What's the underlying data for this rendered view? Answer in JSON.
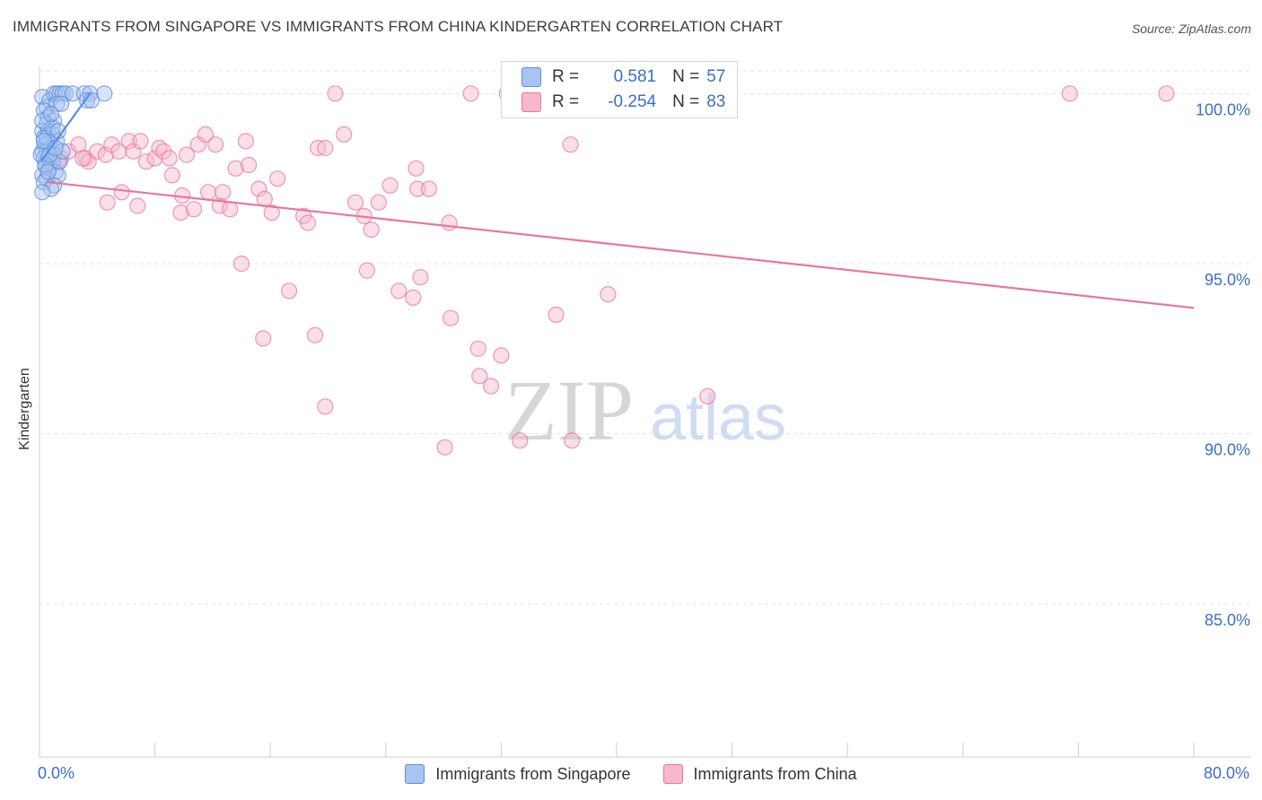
{
  "header": {
    "title": "IMMIGRANTS FROM SINGAPORE VS IMMIGRANTS FROM CHINA KINDERGARTEN CORRELATION CHART",
    "source": "Source: ZipAtlas.com"
  },
  "watermark": {
    "zip": "ZIP",
    "atlas": "atlas"
  },
  "legend": {
    "rows": [
      {
        "r_label": "R =",
        "r_value": "0.581",
        "n_label": "N =",
        "n_value": "57",
        "color": "#a9c4f0"
      },
      {
        "r_label": "R =",
        "r_value": "-0.254",
        "n_label": "N =",
        "n_value": "83",
        "color": "#f7b8cc"
      }
    ]
  },
  "bottom_legend": {
    "series1": "Immigrants from Singapore",
    "series2": "Immigrants from China"
  },
  "chart_data": {
    "type": "scatter",
    "title": "IMMIGRANTS FROM SINGAPORE VS IMMIGRANTS FROM CHINA KINDERGARTEN CORRELATION CHART",
    "xlabel": "",
    "ylabel": "Kindergarten",
    "xlim": [
      0,
      80
    ],
    "ylim": [
      80.5,
      100.8
    ],
    "x_tick_labels": [
      "0.0%",
      "80.0%"
    ],
    "y_ticks": [
      85,
      90,
      95,
      100
    ],
    "y_tick_labels": [
      "85.0%",
      "90.0%",
      "95.0%",
      "100.0%"
    ],
    "grid": true,
    "legend_position": "top-center",
    "series": [
      {
        "name": "Immigrants from Singapore",
        "color": "#5b8fe0",
        "fill": "#a9c4f0",
        "trend": {
          "x": [
            0.1,
            3.5
          ],
          "y": [
            98.0,
            100.0
          ]
        },
        "points": [
          [
            0.2,
            99.9
          ],
          [
            0.5,
            99.6
          ],
          [
            0.7,
            99.8
          ],
          [
            1.0,
            100.0
          ],
          [
            1.2,
            100.0
          ],
          [
            1.4,
            100.0
          ],
          [
            1.6,
            100.0
          ],
          [
            1.8,
            100.0
          ],
          [
            2.3,
            100.0
          ],
          [
            3.1,
            100.0
          ],
          [
            3.5,
            100.0
          ],
          [
            4.5,
            100.0
          ],
          [
            3.3,
            99.8
          ],
          [
            3.6,
            99.8
          ],
          [
            1.2,
            99.7
          ],
          [
            1.5,
            99.7
          ],
          [
            0.3,
            99.5
          ],
          [
            0.6,
            99.3
          ],
          [
            1.0,
            99.2
          ],
          [
            0.5,
            99.1
          ],
          [
            0.2,
            98.9
          ],
          [
            0.6,
            98.9
          ],
          [
            0.9,
            98.8
          ],
          [
            0.3,
            98.7
          ],
          [
            0.7,
            98.6
          ],
          [
            1.2,
            98.6
          ],
          [
            0.4,
            98.5
          ],
          [
            0.8,
            98.4
          ],
          [
            0.2,
            98.3
          ],
          [
            0.5,
            98.3
          ],
          [
            1.0,
            98.2
          ],
          [
            0.3,
            98.1
          ],
          [
            0.6,
            98.1
          ],
          [
            0.9,
            98.0
          ],
          [
            0.4,
            97.9
          ],
          [
            0.7,
            97.8
          ],
          [
            1.1,
            97.7
          ],
          [
            0.2,
            97.6
          ],
          [
            0.5,
            97.5
          ],
          [
            1.3,
            97.6
          ],
          [
            0.3,
            97.4
          ],
          [
            1.0,
            97.3
          ],
          [
            0.8,
            97.2
          ],
          [
            0.2,
            97.1
          ],
          [
            1.4,
            98.0
          ],
          [
            0.5,
            98.7
          ],
          [
            0.9,
            99.0
          ],
          [
            0.1,
            98.2
          ],
          [
            0.4,
            97.9
          ],
          [
            1.6,
            98.3
          ],
          [
            0.7,
            98.2
          ],
          [
            0.3,
            98.6
          ],
          [
            1.1,
            98.4
          ],
          [
            0.6,
            97.7
          ],
          [
            0.2,
            99.2
          ],
          [
            0.8,
            99.4
          ],
          [
            1.3,
            98.9
          ]
        ]
      },
      {
        "name": "Immigrants from China",
        "color": "#e8779b",
        "fill": "#f7b8cc",
        "trend": {
          "x": [
            0.5,
            80
          ],
          "y": [
            97.4,
            93.7
          ]
        },
        "points": [
          [
            1.0,
            98.2
          ],
          [
            1.5,
            98.1
          ],
          [
            2.0,
            98.3
          ],
          [
            2.7,
            98.5
          ],
          [
            3.2,
            98.1
          ],
          [
            3.4,
            98.0
          ],
          [
            4.0,
            98.3
          ],
          [
            4.6,
            98.2
          ],
          [
            5.0,
            98.5
          ],
          [
            5.5,
            98.3
          ],
          [
            6.2,
            98.6
          ],
          [
            6.5,
            98.3
          ],
          [
            7.4,
            98.0
          ],
          [
            8.0,
            98.1
          ],
          [
            8.3,
            98.4
          ],
          [
            8.6,
            98.3
          ],
          [
            9.0,
            98.1
          ],
          [
            11.0,
            98.5
          ],
          [
            11.5,
            98.8
          ],
          [
            12.2,
            98.5
          ],
          [
            14.3,
            98.6
          ],
          [
            19.3,
            98.4
          ],
          [
            19.8,
            98.4
          ],
          [
            21.1,
            98.8
          ],
          [
            5.7,
            97.1
          ],
          [
            4.7,
            96.8
          ],
          [
            6.8,
            96.7
          ],
          [
            9.2,
            97.6
          ],
          [
            9.9,
            97.0
          ],
          [
            9.8,
            96.5
          ],
          [
            10.7,
            96.6
          ],
          [
            11.7,
            97.1
          ],
          [
            12.5,
            96.7
          ],
          [
            12.7,
            97.1
          ],
          [
            13.2,
            96.6
          ],
          [
            13.6,
            97.8
          ],
          [
            14.5,
            97.9
          ],
          [
            15.2,
            97.2
          ],
          [
            15.6,
            96.9
          ],
          [
            16.1,
            96.5
          ],
          [
            16.5,
            97.5
          ],
          [
            18.3,
            96.4
          ],
          [
            18.6,
            96.2
          ],
          [
            21.9,
            96.8
          ],
          [
            22.5,
            96.4
          ],
          [
            23.0,
            96.0
          ],
          [
            23.5,
            96.8
          ],
          [
            24.3,
            97.3
          ],
          [
            26.1,
            97.8
          ],
          [
            26.2,
            97.2
          ],
          [
            27.0,
            97.2
          ],
          [
            28.4,
            96.2
          ],
          [
            14.0,
            95.0
          ],
          [
            17.3,
            94.2
          ],
          [
            22.7,
            94.8
          ],
          [
            24.9,
            94.2
          ],
          [
            25.9,
            94.0
          ],
          [
            26.4,
            94.6
          ],
          [
            28.5,
            93.4
          ],
          [
            35.8,
            93.5
          ],
          [
            39.4,
            94.1
          ],
          [
            15.5,
            92.8
          ],
          [
            19.1,
            92.9
          ],
          [
            30.4,
            92.5
          ],
          [
            32.0,
            92.3
          ],
          [
            30.5,
            91.7
          ],
          [
            31.3,
            91.4
          ],
          [
            46.3,
            91.1
          ],
          [
            19.8,
            90.8
          ],
          [
            33.3,
            89.8
          ],
          [
            36.9,
            89.8
          ],
          [
            28.1,
            89.6
          ],
          [
            20.5,
            100.0
          ],
          [
            29.9,
            100.0
          ],
          [
            32.4,
            100.0
          ],
          [
            33.8,
            100.0
          ],
          [
            71.4,
            100.0
          ],
          [
            78.1,
            100.0
          ],
          [
            36.8,
            98.5
          ],
          [
            3.0,
            98.1
          ],
          [
            10.2,
            98.2
          ],
          [
            1.3,
            98.0
          ],
          [
            7.0,
            98.6
          ]
        ]
      }
    ]
  }
}
